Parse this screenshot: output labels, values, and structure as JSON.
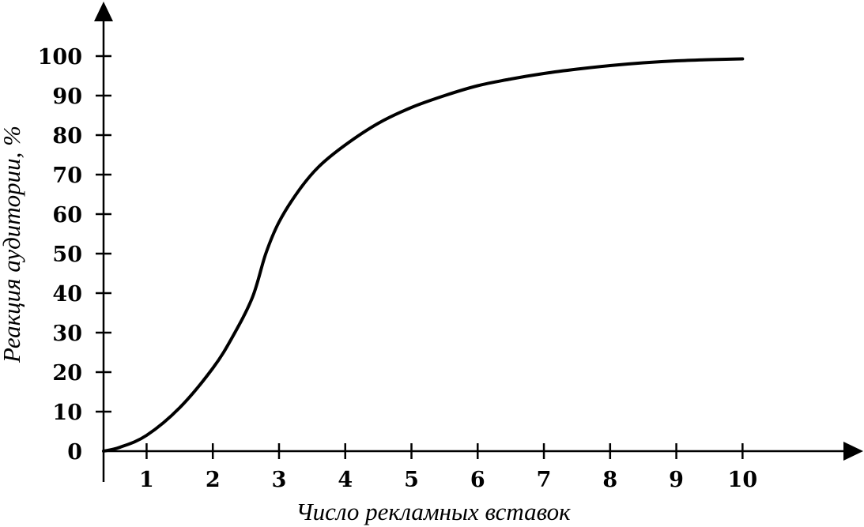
{
  "chart_data": {
    "type": "line",
    "xlabel": "Число рекламных вставок",
    "ylabel": "Реакция аудитории, %",
    "x_ticks": [
      "1",
      "2",
      "3",
      "4",
      "5",
      "6",
      "7",
      "8",
      "9",
      "10"
    ],
    "y_ticks": [
      "0",
      "10",
      "20",
      "30",
      "40",
      "50",
      "60",
      "70",
      "80",
      "90",
      "100"
    ],
    "xlim": [
      0.35,
      11.5
    ],
    "ylim": [
      0,
      110
    ],
    "grid": false,
    "series": [
      {
        "x": [
          0.35,
          0.6,
          1.0,
          1.5,
          2.0,
          2.3,
          2.6,
          2.8,
          3.0,
          3.3,
          3.6,
          4.0,
          4.5,
          5.0,
          5.5,
          6.0,
          6.5,
          7.0,
          7.5,
          8.0,
          8.5,
          9.0,
          9.5,
          10.0
        ],
        "y": [
          0,
          1,
          4,
          11,
          21,
          29,
          39,
          50,
          58,
          66,
          72,
          77.5,
          83,
          87,
          90,
          92.5,
          94.2,
          95.6,
          96.7,
          97.6,
          98.3,
          98.8,
          99.1,
          99.3
        ]
      }
    ],
    "style": {
      "line_color": "#000000",
      "axis_color": "#000000"
    }
  }
}
